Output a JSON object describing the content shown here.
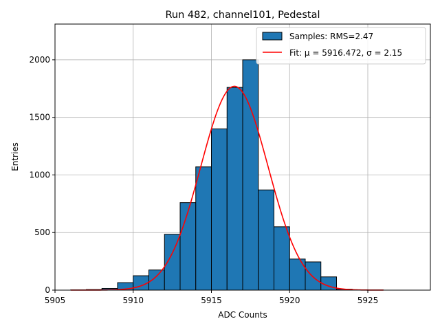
{
  "chart_data": {
    "type": "bar",
    "title": "Run 482, channel101, Pedestal",
    "xlabel": "ADC Counts",
    "ylabel": "Entries",
    "xlim": [
      5905,
      5929
    ],
    "ylim": [
      0,
      2310
    ],
    "grid": true,
    "legend_position": "top-right",
    "x_ticks": [
      5905,
      5910,
      5915,
      5920,
      5925
    ],
    "y_ticks": [
      0,
      500,
      1000,
      1500,
      2000
    ],
    "histogram": {
      "name": "Samples: RMS=2.47",
      "color": "#1f77b4",
      "bin_starts": [
        5906,
        5907,
        5908,
        5909,
        5910,
        5911,
        5912,
        5913,
        5914,
        5915,
        5916,
        5917,
        5918,
        5919,
        5920,
        5921,
        5922,
        5923,
        5924,
        5925
      ],
      "bin_width": 1,
      "values": [
        2,
        5,
        15,
        65,
        125,
        175,
        485,
        760,
        1070,
        1400,
        1760,
        2000,
        870,
        550,
        270,
        245,
        115,
        8,
        3,
        1
      ]
    },
    "fit": {
      "name": "Fit: μ = 5916.472, σ = 2.15",
      "color": "#ff0000",
      "mu": 5916.472,
      "sigma": 2.15,
      "amplitude": 1770,
      "x_range": [
        5906,
        5926
      ]
    }
  }
}
